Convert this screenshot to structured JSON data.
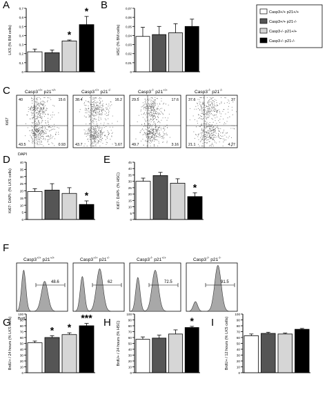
{
  "figure": {
    "legend": [
      "Casp3+/+ p21+/+",
      "Casp3+/+ p21-/-",
      "Casp3-/- p21+/+",
      "Casp3-/- p21-/-"
    ],
    "colors": [
      "#ffffff",
      "#555555",
      "#d6d6d6",
      "#000000"
    ],
    "genotypes": [
      {
        "casp": "+/+",
        "p21": "+/+"
      },
      {
        "casp": "+/+",
        "p21": "-/-"
      },
      {
        "casp": "-/-",
        "p21": "+/+"
      },
      {
        "casp": "-/-",
        "p21": "-/-"
      }
    ],
    "casp_text": "Casp3",
    "p21_text": "p21",
    "panel_C": {
      "letter": "C",
      "ylabel": "Ki67",
      "xlabel": "DAPI",
      "quadrants": [
        {
          "tl": "40",
          "tr": "15.6",
          "bl": "43.5",
          "br": "0.93"
        },
        {
          "tl": "38.4",
          "tr": "16.2",
          "bl": "43.7",
          "br": "1.67"
        },
        {
          "tl": "29.5",
          "tr": "17.6",
          "bl": "49.7",
          "br": "3.16"
        },
        {
          "tl": "37.6",
          "tr": "37",
          "bl": "21.1",
          "br": "4.27"
        }
      ]
    },
    "panel_F": {
      "letter": "F",
      "xlabel": "BrdU",
      "gates": [
        "48.6",
        "62",
        "72.5",
        "91.5"
      ]
    }
  },
  "chart_data": [
    {
      "panel": "A",
      "type": "bar",
      "ylabel": "LKS (% BM cells)",
      "ylim": [
        0,
        0.7
      ],
      "yticks": [
        "0",
        "0,1",
        "0,2",
        "0,3",
        "0,4",
        "0,5",
        "0,6",
        "0,7"
      ],
      "values": [
        0.22,
        0.21,
        0.34,
        0.52
      ],
      "errors": [
        0.03,
        0.03,
        0.01,
        0.09
      ],
      "stars": [
        "",
        "",
        "*",
        "*"
      ]
    },
    {
      "panel": "B",
      "type": "bar",
      "ylabel": "HSC (% BM cells)",
      "ylim": [
        0,
        0.07
      ],
      "yticks": [
        "0",
        "0,01",
        "0,02",
        "0,03",
        "0,04",
        "0,05",
        "0,06",
        "0,07"
      ],
      "values": [
        0.039,
        0.041,
        0.043,
        0.05
      ],
      "errors": [
        0.01,
        0.009,
        0.01,
        0.008
      ],
      "stars": [
        "",
        "",
        "",
        ""
      ]
    },
    {
      "panel": "D",
      "type": "bar",
      "ylabel": "Ki67- DAPI- (% LKS cells)",
      "ylim": [
        0,
        40
      ],
      "yticks": [
        "0",
        "5",
        "10",
        "15",
        "20",
        "25",
        "30",
        "35",
        "40"
      ],
      "values": [
        19.5,
        20.5,
        18.2,
        10.5
      ],
      "errors": [
        2,
        4.5,
        4,
        2.5
      ],
      "stars": [
        "",
        "",
        "",
        "*"
      ]
    },
    {
      "panel": "E",
      "type": "bar",
      "ylabel": "Ki67- DAPI- (% HSC)",
      "ylim": [
        0,
        45
      ],
      "yticks": [
        "0",
        "5",
        "10",
        "15",
        "20",
        "25",
        "30",
        "35",
        "40",
        "45"
      ],
      "values": [
        30,
        34.5,
        28.5,
        18
      ],
      "errors": [
        2.5,
        2.5,
        3.5,
        3
      ],
      "stars": [
        "",
        "",
        "",
        "*"
      ]
    },
    {
      "panel": "G",
      "type": "bar",
      "ylabel": "BrdU+ / 24 hours (% LKS cells)",
      "ylim": [
        0,
        100
      ],
      "yticks": [
        "0",
        "10",
        "20",
        "30",
        "40",
        "50",
        "60",
        "70",
        "80",
        "90",
        "100"
      ],
      "values": [
        51,
        60,
        65,
        80
      ],
      "errors": [
        3,
        3,
        3,
        4
      ],
      "stars": [
        "",
        "*",
        "*",
        "***"
      ]
    },
    {
      "panel": "H",
      "type": "bar",
      "ylabel": "BrdU+ / 24 hours (% HSC)",
      "ylim": [
        0,
        100
      ],
      "yticks": [
        "0",
        "10",
        "20",
        "30",
        "40",
        "50",
        "60",
        "70",
        "80",
        "90",
        "100"
      ],
      "values": [
        57,
        59,
        66,
        77
      ],
      "errors": [
        4,
        5,
        7,
        2
      ],
      "stars": [
        "",
        "",
        "",
        "*"
      ]
    },
    {
      "panel": "I",
      "type": "bar",
      "ylabel": "BrdU+ / 12 hours (% LKS cells)",
      "ylim": [
        0,
        100
      ],
      "yticks": [
        "0",
        "10",
        "20",
        "30",
        "40",
        "50",
        "60",
        "70",
        "80",
        "90",
        "100"
      ],
      "values": [
        63,
        67,
        66,
        74
      ],
      "errors": [
        3,
        2,
        1.5,
        1.5
      ],
      "stars": [
        "",
        "",
        "",
        ""
      ]
    }
  ]
}
